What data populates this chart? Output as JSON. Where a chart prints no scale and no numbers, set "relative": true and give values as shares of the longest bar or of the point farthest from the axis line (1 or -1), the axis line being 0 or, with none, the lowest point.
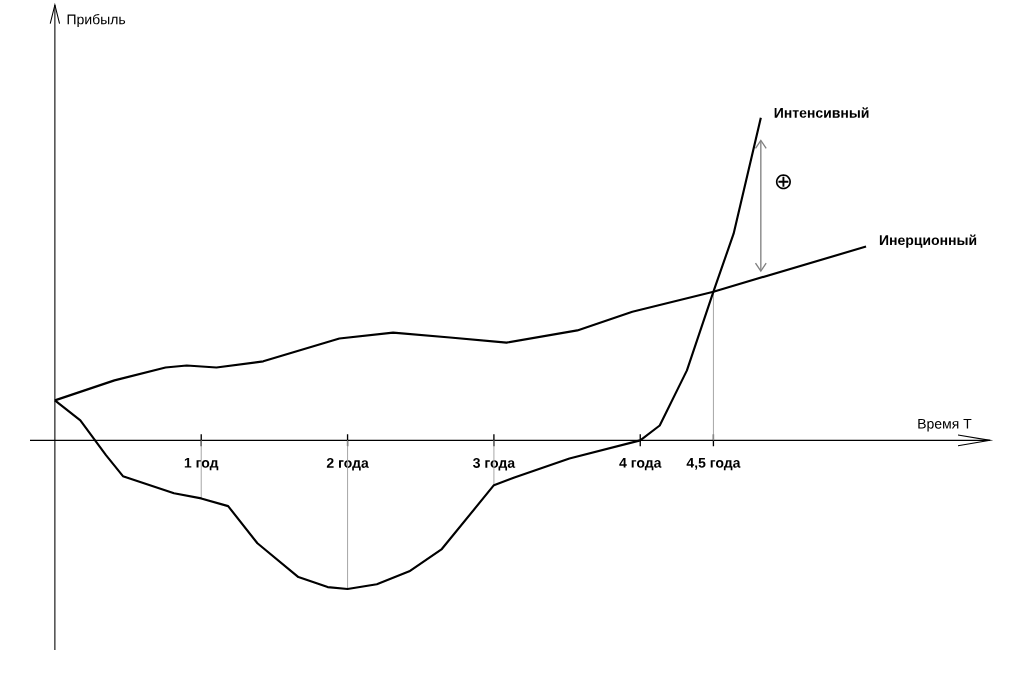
{
  "chart_data": {
    "type": "line",
    "relative": true,
    "xlabel": "Время T",
    "xlim": [
      -0.17,
      6.39
    ],
    "xticks": [
      {
        "value": 1,
        "label": "1 год"
      },
      {
        "value": 2,
        "label": "2 года"
      },
      {
        "value": 3,
        "label": "3 года"
      },
      {
        "value": 4,
        "label": "4 года"
      },
      {
        "value": 4.5,
        "label": "4,5 года"
      }
    ],
    "series": [
      {
        "name": "Интенсивный",
        "color": "#000000",
        "x": [
          0,
          0.174,
          0.349,
          0.465,
          0.814,
          1,
          1.184,
          1.384,
          1.664,
          1.864,
          2,
          2.2,
          2.422,
          2.644,
          3,
          3.14,
          3.516,
          4,
          4.133,
          4.319,
          4.5,
          4.638,
          4.824
        ],
        "values": [
          0.124,
          0.062,
          -0.046,
          -0.111,
          -0.164,
          -0.18,
          -0.204,
          -0.319,
          -0.424,
          -0.455,
          -0.461,
          -0.446,
          -0.406,
          -0.337,
          -0.139,
          -0.115,
          -0.056,
          0,
          0.046,
          0.217,
          0.461,
          0.641,
          1
        ]
      },
      {
        "name": "Инерционный",
        "color": "#000000",
        "x": [
          0,
          0.407,
          0.756,
          0.901,
          1.104,
          1.424,
          1.944,
          2.311,
          2.7,
          3.086,
          3.57,
          3.946,
          4.5,
          5.543
        ],
        "values": [
          0.124,
          0.186,
          0.226,
          0.232,
          0.226,
          0.245,
          0.316,
          0.334,
          0.319,
          0.303,
          0.341,
          0.399,
          0.461,
          0.601
        ]
      }
    ],
    "ref_lines": [
      {
        "axis": "x",
        "value": 1,
        "color": "#a0a0a0"
      },
      {
        "axis": "x",
        "value": 2,
        "color": "#a0a0a0"
      },
      {
        "axis": "x",
        "value": 3,
        "color": "#a0a0a0"
      },
      {
        "axis": "x",
        "value": 4.5,
        "color": "#a0a0a0"
      }
    ],
    "annotations": [
      "⊕",
      "Прибыль"
    ]
  }
}
